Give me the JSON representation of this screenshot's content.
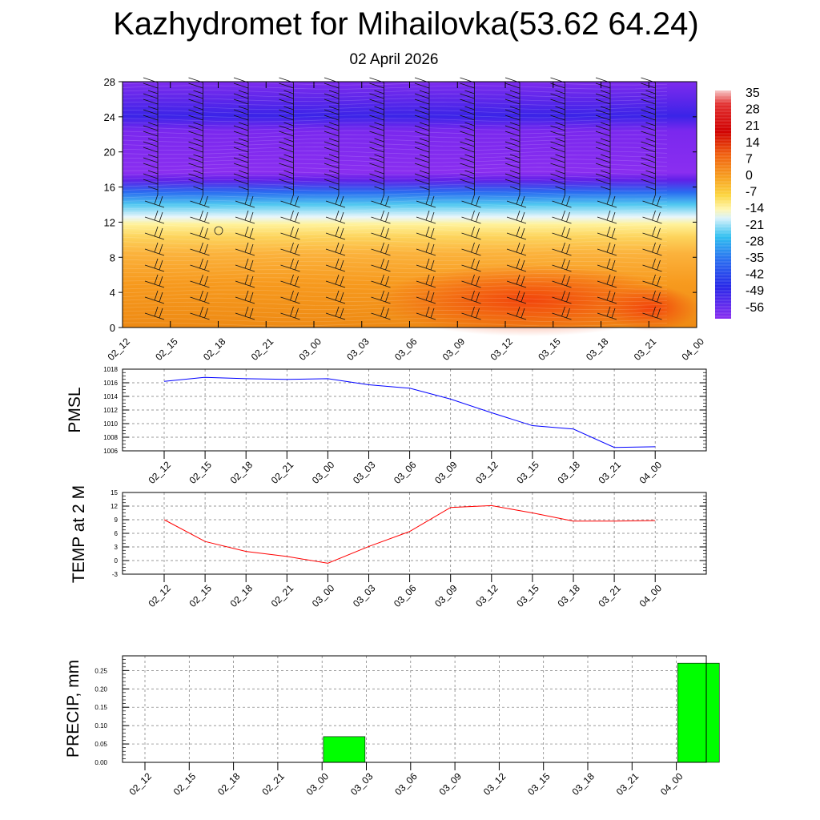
{
  "header": {
    "title": "Kazhydromet for Mihailovka(53.62 64.24)",
    "date": "02 April 2026"
  },
  "chart_data": [
    {
      "type": "heatmap",
      "title": "",
      "xlabel": "",
      "ylabel": "",
      "x_tick_labels": [
        "02_12",
        "02_15",
        "02_18",
        "02_21",
        "03_00",
        "03_03",
        "03_06",
        "03_09",
        "03_12",
        "03_15",
        "03_18",
        "03_21",
        "04_00"
      ],
      "y_ticks": [
        0,
        4,
        8,
        12,
        16,
        20,
        24,
        28
      ],
      "ylim": [
        0,
        28
      ],
      "colorbar": {
        "labels": [
          "35",
          "28",
          "21",
          "14",
          "7",
          "0",
          "-7",
          "-14",
          "-21",
          "-28",
          "-35",
          "-42",
          "-49",
          "-56"
        ]
      },
      "description_values": "Air temperature profile by height (0–28): warm (about 0 to 14) below ~12, cold (-40 to -56) above ~17; wind barbs overlaid."
    },
    {
      "type": "line",
      "ylabel": "PMSL",
      "x_tick_labels": [
        "02_12",
        "02_15",
        "02_18",
        "02_21",
        "03_00",
        "03_03",
        "03_06",
        "03_09",
        "03_12",
        "03_15",
        "03_18",
        "03_21",
        "04_00"
      ],
      "series": [
        {
          "name": "PMSL",
          "color": "#0000ff",
          "values": [
            1016.2,
            1016.8,
            1016.6,
            1016.5,
            1016.6,
            1015.7,
            1015.2,
            1013.6,
            1011.6,
            1009.7,
            1009.2,
            1006.5,
            1006.6
          ]
        }
      ],
      "ylim": [
        1006,
        1018
      ],
      "y_ticks": [
        1006,
        1008,
        1010,
        1012,
        1014,
        1016,
        1018
      ],
      "grid": true
    },
    {
      "type": "line",
      "ylabel": "TEMP at 2 M",
      "x_tick_labels": [
        "02_12",
        "02_15",
        "02_18",
        "02_21",
        "03_00",
        "03_03",
        "03_06",
        "03_09",
        "03_12",
        "03_15",
        "03_18",
        "03_21",
        "04_00"
      ],
      "series": [
        {
          "name": "TEMP at 2 M",
          "color": "#ff0000",
          "values": [
            9.0,
            4.2,
            2.0,
            0.9,
            -0.6,
            3.1,
            6.4,
            11.7,
            12.1,
            10.5,
            8.7,
            8.7,
            8.8
          ]
        }
      ],
      "ylim": [
        -3,
        15
      ],
      "y_ticks": [
        -3,
        0,
        3,
        6,
        9,
        12,
        15
      ],
      "grid": true
    },
    {
      "type": "bar",
      "ylabel": "PRECIP, mm",
      "x_tick_labels": [
        "02_12",
        "02_15",
        "02_18",
        "02_21",
        "03_00",
        "03_03",
        "03_06",
        "03_09",
        "03_12",
        "03_15",
        "03_18",
        "03_21",
        "04_00"
      ],
      "values": [
        0,
        0,
        0,
        0,
        0.07,
        0,
        0,
        0,
        0,
        0,
        0,
        0,
        0.27
      ],
      "color": "#00ff00",
      "ylim": [
        0,
        0.29
      ],
      "y_tick_labels": [
        "0.00",
        "0.05",
        "0.10",
        "0.15",
        "0.20",
        "0.25"
      ],
      "grid": true
    }
  ]
}
